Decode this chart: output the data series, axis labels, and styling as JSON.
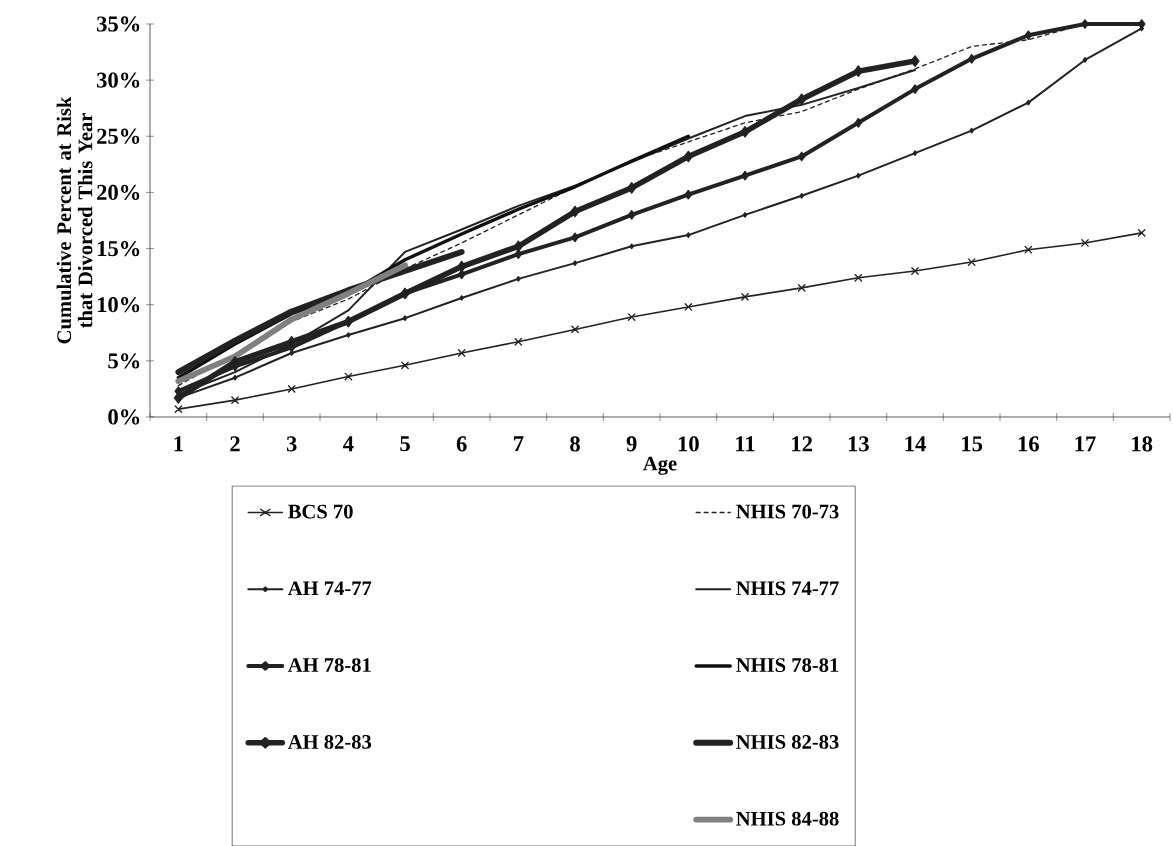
{
  "chart_data": {
    "type": "line",
    "xlabel": "Age",
    "ylabel": "Cumulative Percent at Risk that Divorced This Year",
    "categories": [
      "1",
      "2",
      "3",
      "4",
      "5",
      "6",
      "7",
      "8",
      "9",
      "10",
      "11",
      "12",
      "13",
      "14",
      "15",
      "16",
      "17",
      "18"
    ],
    "ylim": [
      0,
      35
    ],
    "yticks": [
      {
        "value": 0,
        "label": "0%"
      },
      {
        "value": 5,
        "label": "5%"
      },
      {
        "value": 10,
        "label": "10%"
      },
      {
        "value": 15,
        "label": "15%"
      },
      {
        "value": 20,
        "label": "20%"
      },
      {
        "value": 25,
        "label": "25%"
      },
      {
        "value": 30,
        "label": "30%"
      },
      {
        "value": 35,
        "label": "35%"
      }
    ],
    "legend": "bottom",
    "grid": false,
    "series": [
      {
        "name": "BCS 70",
        "color": "#222222",
        "marker": "cross",
        "line_style": "solid",
        "values": [
          0.7,
          1.5,
          2.5,
          3.6,
          4.6,
          5.7,
          6.7,
          7.8,
          8.9,
          9.8,
          10.7,
          11.5,
          12.4,
          13.0,
          13.8,
          14.9,
          15.5,
          16.4
        ]
      },
      {
        "name": "NHIS 70-73",
        "color": "#222222",
        "marker": "none",
        "line_style": "dashed",
        "values": [
          2.8,
          5.6,
          8.5,
          10.5,
          13.2,
          15.5,
          18.0,
          20.5,
          22.8,
          24.5,
          26.2,
          27.2,
          29.2,
          31.0,
          33.0,
          33.6,
          35.0,
          null
        ]
      },
      {
        "name": "AH 74-77",
        "color": "#222222",
        "marker": "diamond",
        "line_style": "solid",
        "values": [
          1.7,
          3.5,
          5.7,
          7.3,
          8.8,
          10.6,
          12.3,
          13.7,
          15.2,
          16.2,
          18.0,
          19.7,
          21.5,
          23.5,
          25.5,
          28.0,
          31.8,
          34.6
        ]
      },
      {
        "name": "NHIS 74-77",
        "color": "#222222",
        "marker": "none",
        "line_style": "solid",
        "values": [
          2.0,
          4.0,
          6.5,
          9.5,
          14.7,
          16.7,
          18.8,
          20.6,
          22.7,
          24.8,
          26.8,
          27.8,
          29.3,
          30.9,
          null,
          null,
          null,
          null
        ]
      },
      {
        "name": "AH 78-81",
        "color": "#222222",
        "marker": "diamond",
        "line_style": "solid",
        "values": [
          2.3,
          4.5,
          6.2,
          8.5,
          11.0,
          12.7,
          14.5,
          16.0,
          18.0,
          19.8,
          21.5,
          23.2,
          26.2,
          29.2,
          31.9,
          34.0,
          35.0,
          35.0
        ]
      },
      {
        "name": "NHIS 78-81",
        "color": "#111111",
        "marker": "none",
        "line_style": "solid",
        "values": [
          3.5,
          6.5,
          9.2,
          11.0,
          14.0,
          16.3,
          18.5,
          20.5,
          22.8,
          25.0,
          null,
          null,
          null,
          null,
          null,
          null,
          null,
          null
        ]
      },
      {
        "name": "AH 82-83",
        "color": "#222222",
        "marker": "diamond",
        "line_style": "solid",
        "values": [
          1.7,
          4.9,
          6.7,
          8.5,
          11.0,
          13.4,
          15.2,
          18.3,
          20.4,
          23.2,
          25.4,
          28.3,
          30.8,
          31.7,
          null,
          null,
          null,
          null
        ]
      },
      {
        "name": "NHIS 82-83",
        "color": "#222222",
        "marker": "none",
        "line_style": "solid",
        "values": [
          4.0,
          6.8,
          9.4,
          11.3,
          13.0,
          14.7,
          null,
          null,
          null,
          null,
          null,
          null,
          null,
          null,
          null,
          null,
          null,
          null
        ]
      },
      {
        "name": "NHIS 84-88",
        "color": "#808080",
        "marker": "none",
        "line_style": "solid",
        "values": [
          3.2,
          5.4,
          8.7,
          11.0,
          13.5,
          null,
          null,
          null,
          null,
          null,
          null,
          null,
          null,
          null,
          null,
          null,
          null,
          null
        ]
      }
    ]
  }
}
